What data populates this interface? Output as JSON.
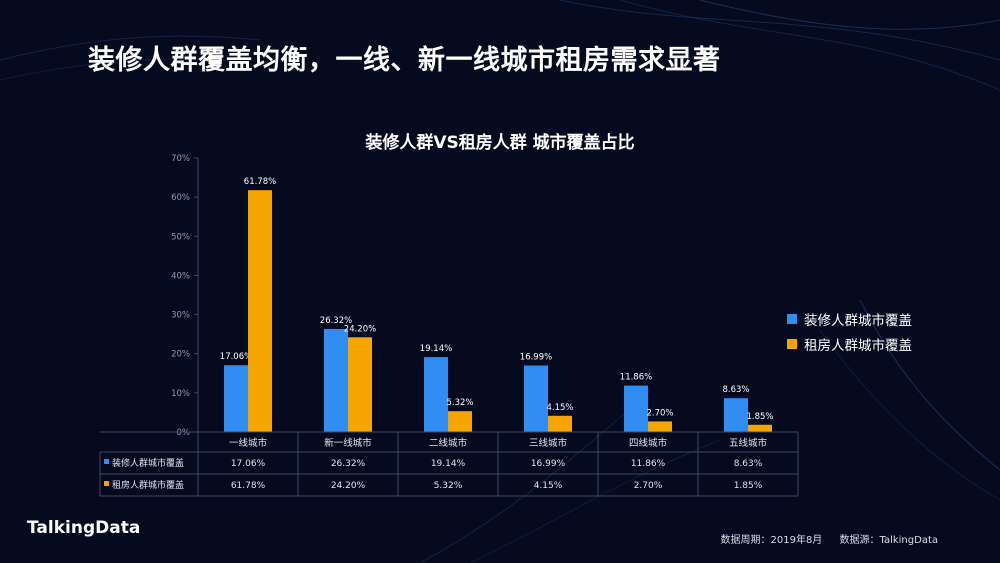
{
  "slide": {
    "title": "装修人群覆盖均衡，一线、新一线城市租房需求显著",
    "logo": "TalkingData",
    "footer_period": "数据周期：2019年8月",
    "footer_source": "数据源：TalkingData"
  },
  "colors": {
    "background": "#060a1e",
    "series_blue": "#2f8cf0",
    "series_orange": "#f7a600",
    "axis": "#8a9bb8",
    "grid_line": "#3c4766"
  },
  "chart_data": {
    "type": "bar",
    "title": "装修人群VS租房人群 城市覆盖占比",
    "categories": [
      "一线城市",
      "新一线城市",
      "二线城市",
      "三线城市",
      "四线城市",
      "五线城市"
    ],
    "series": [
      {
        "name": "装修人群城市覆盖",
        "values": [
          17.06,
          26.32,
          19.14,
          16.99,
          11.86,
          8.63
        ],
        "labels": [
          "17.06%",
          "26.32%",
          "19.14%",
          "16.99%",
          "11.86%",
          "8.63%"
        ],
        "color": "#2f8cf0"
      },
      {
        "name": "租房人群城市覆盖",
        "values": [
          61.78,
          24.2,
          5.32,
          4.15,
          2.7,
          1.85
        ],
        "labels": [
          "61.78%",
          "24.20%",
          "5.32%",
          "4.15%",
          "2.70%",
          "1.85%"
        ],
        "color": "#f7a600"
      }
    ],
    "y_ticks": [
      "0%",
      "10%",
      "20%",
      "30%",
      "40%",
      "50%",
      "60%",
      "70%"
    ],
    "ylim": [
      0,
      70
    ],
    "legend_position": "right",
    "data_table": true
  }
}
